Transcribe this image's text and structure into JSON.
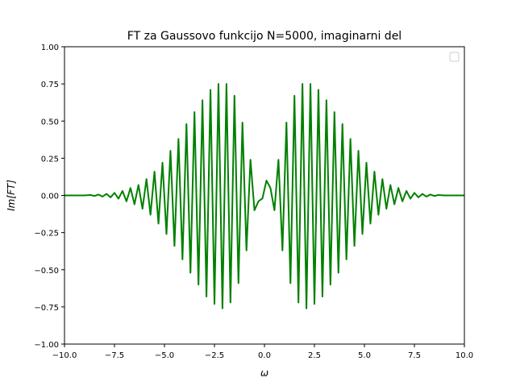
{
  "chart_data": {
    "type": "line",
    "title": "FT za Gaussovo funkcijo N=5000, imaginarni del",
    "xlabel": "ω",
    "ylabel": "Im[FT]",
    "xlim": [
      -10,
      10
    ],
    "ylim": [
      -1.0,
      1.0
    ],
    "xticks": [
      -10,
      -7.5,
      -5,
      -2.5,
      0,
      2.5,
      5,
      7.5,
      10
    ],
    "xtick_labels": [
      "−10.0",
      "−7.5",
      "−5.0",
      "−2.5",
      "0.0",
      "2.5",
      "5.0",
      "7.5",
      "10.0"
    ],
    "yticks": [
      -1.0,
      -0.75,
      -0.5,
      -0.25,
      0,
      0.25,
      0.5,
      0.75,
      1.0
    ],
    "ytick_labels": [
      "−1.00",
      "−0.75",
      "−0.50",
      "−0.25",
      "0.00",
      "0.25",
      "0.50",
      "0.75",
      "1.00"
    ],
    "grid": false,
    "legend": {
      "placement": "top-right",
      "entries": []
    },
    "series": [
      {
        "color": "#008000",
        "points": [
          [
            -10.0,
            0.0
          ],
          [
            -9.0,
            0.0
          ],
          [
            -8.7,
            0.003
          ],
          [
            -8.5,
            -0.004
          ],
          [
            -8.3,
            0.006
          ],
          [
            -8.1,
            -0.008
          ],
          [
            -7.9,
            0.01
          ],
          [
            -7.7,
            -0.013
          ],
          [
            -7.5,
            0.017
          ],
          [
            -7.3,
            -0.022
          ],
          [
            -7.1,
            0.03
          ],
          [
            -6.9,
            -0.04
          ],
          [
            -6.7,
            0.05
          ],
          [
            -6.5,
            -0.06
          ],
          [
            -6.3,
            0.07
          ],
          [
            -6.1,
            -0.09
          ],
          [
            -5.9,
            0.11
          ],
          [
            -5.7,
            -0.13
          ],
          [
            -5.5,
            0.16
          ],
          [
            -5.3,
            -0.19
          ],
          [
            -5.1,
            0.22
          ],
          [
            -4.9,
            -0.26
          ],
          [
            -4.7,
            0.3
          ],
          [
            -4.5,
            -0.34
          ],
          [
            -4.3,
            0.38
          ],
          [
            -4.1,
            -0.43
          ],
          [
            -3.9,
            0.48
          ],
          [
            -3.7,
            -0.52
          ],
          [
            -3.5,
            0.56
          ],
          [
            -3.3,
            -0.6
          ],
          [
            -3.1,
            0.64
          ],
          [
            -2.9,
            -0.68
          ],
          [
            -2.7,
            0.71
          ],
          [
            -2.5,
            -0.73
          ],
          [
            -2.3,
            0.75
          ],
          [
            -2.1,
            -0.76
          ],
          [
            -1.9,
            0.75
          ],
          [
            -1.7,
            -0.72
          ],
          [
            -1.5,
            0.67
          ],
          [
            -1.3,
            -0.59
          ],
          [
            -1.1,
            0.49
          ],
          [
            -0.9,
            -0.37
          ],
          [
            -0.7,
            0.24
          ],
          [
            -0.5,
            -0.1
          ],
          [
            -0.3,
            -0.04
          ],
          [
            -0.1,
            -0.02
          ],
          [
            0.1,
            0.1
          ],
          [
            0.3,
            0.05
          ],
          [
            0.5,
            -0.1
          ],
          [
            0.7,
            0.24
          ],
          [
            0.9,
            -0.37
          ],
          [
            1.1,
            0.49
          ],
          [
            1.3,
            -0.59
          ],
          [
            1.5,
            0.67
          ],
          [
            1.7,
            -0.72
          ],
          [
            1.9,
            0.75
          ],
          [
            2.1,
            -0.76
          ],
          [
            2.3,
            0.75
          ],
          [
            2.5,
            -0.73
          ],
          [
            2.7,
            0.71
          ],
          [
            2.9,
            -0.68
          ],
          [
            3.1,
            0.64
          ],
          [
            3.3,
            -0.6
          ],
          [
            3.5,
            0.56
          ],
          [
            3.7,
            -0.52
          ],
          [
            3.9,
            0.48
          ],
          [
            4.1,
            -0.43
          ],
          [
            4.3,
            0.38
          ],
          [
            4.5,
            -0.34
          ],
          [
            4.7,
            0.3
          ],
          [
            4.9,
            -0.26
          ],
          [
            5.1,
            0.22
          ],
          [
            5.3,
            -0.19
          ],
          [
            5.5,
            0.16
          ],
          [
            5.7,
            -0.13
          ],
          [
            5.9,
            0.11
          ],
          [
            6.1,
            -0.09
          ],
          [
            6.3,
            0.07
          ],
          [
            6.5,
            -0.06
          ],
          [
            6.7,
            0.05
          ],
          [
            6.9,
            -0.04
          ],
          [
            7.1,
            0.03
          ],
          [
            7.3,
            -0.022
          ],
          [
            7.5,
            0.017
          ],
          [
            7.7,
            -0.013
          ],
          [
            7.9,
            0.01
          ],
          [
            8.1,
            -0.008
          ],
          [
            8.3,
            0.006
          ],
          [
            8.5,
            -0.004
          ],
          [
            8.7,
            0.003
          ],
          [
            9.0,
            0.0
          ],
          [
            10.0,
            0.0
          ]
        ]
      }
    ]
  }
}
